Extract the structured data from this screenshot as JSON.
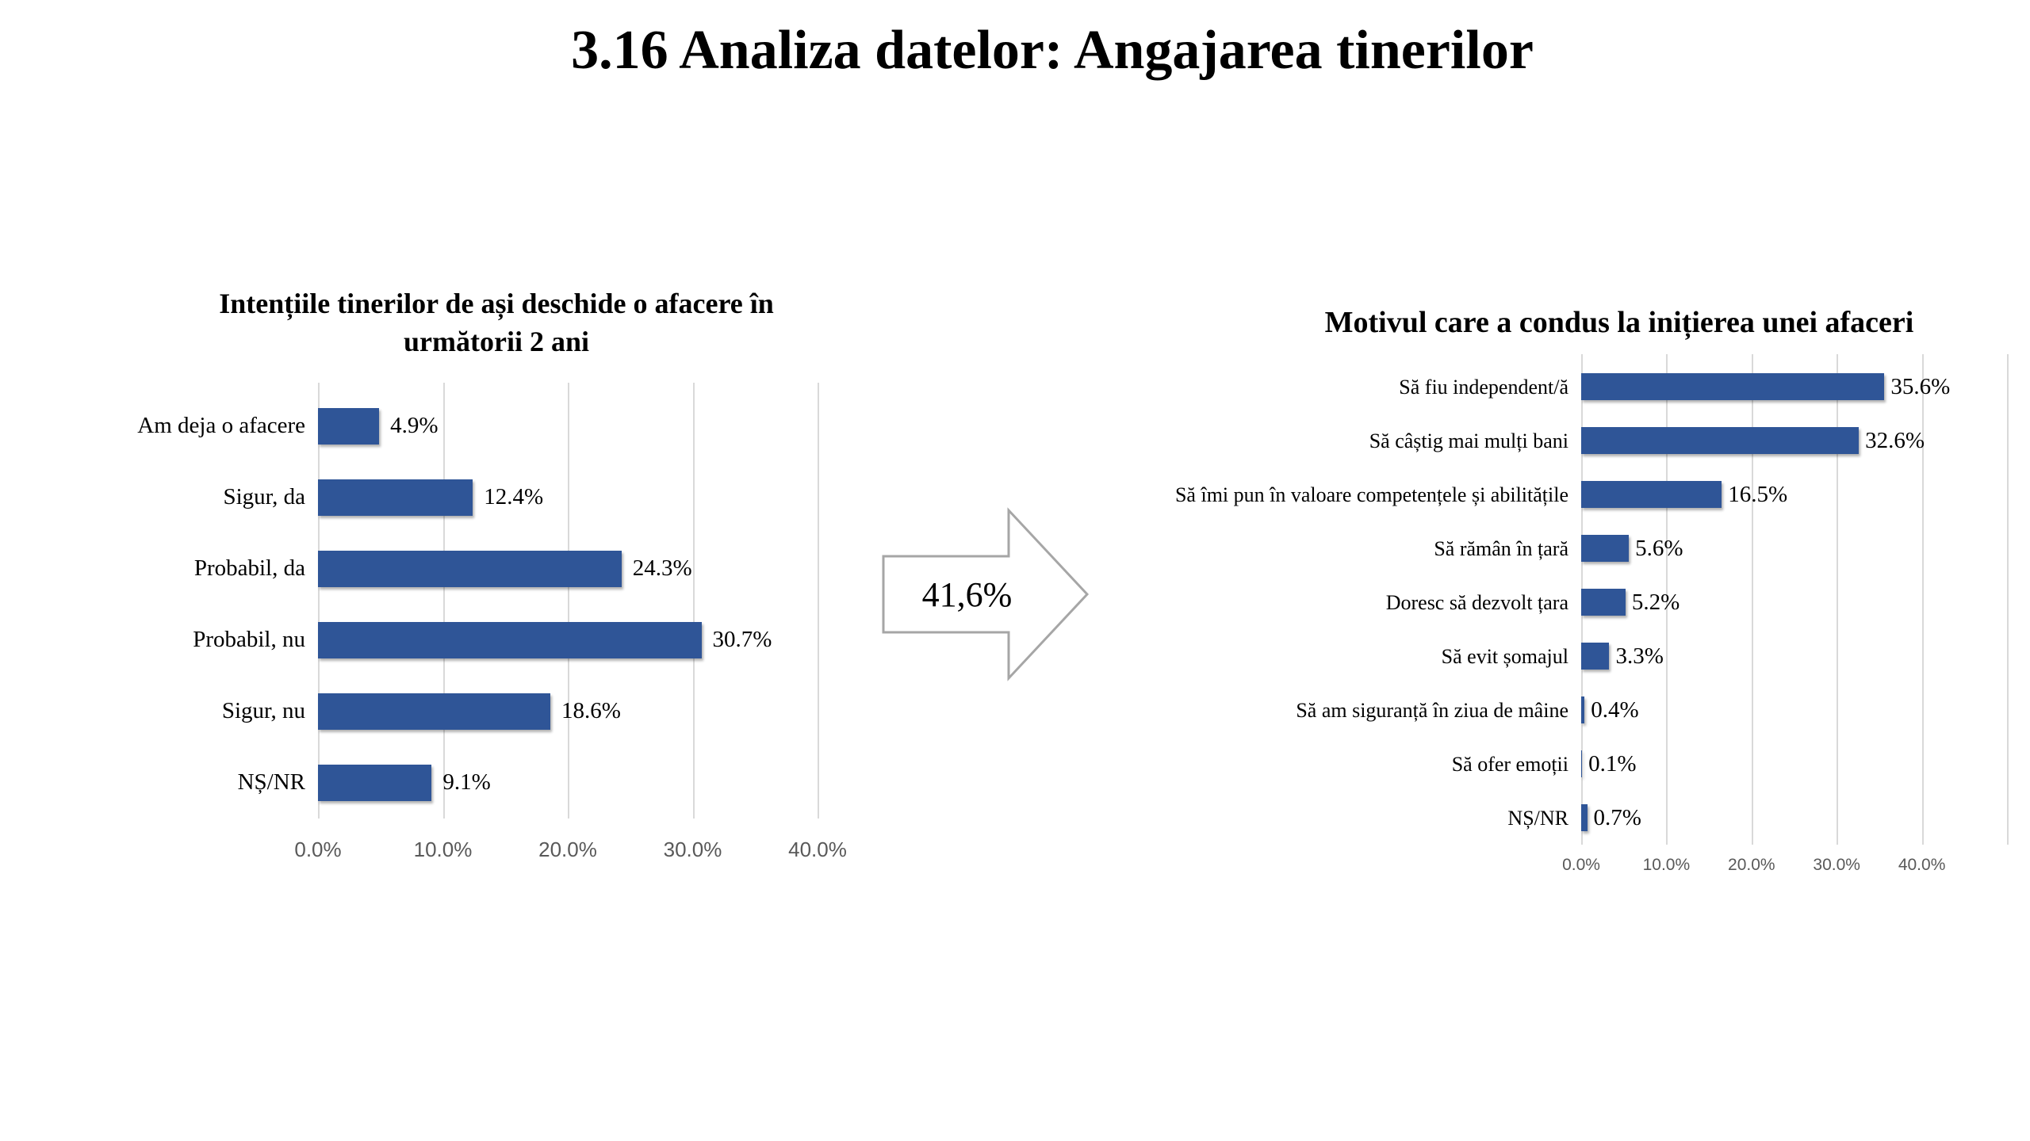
{
  "page_title": "3.16 Analiza datelor: Angajarea tinerilor",
  "arrow": {
    "label": "41,6%"
  },
  "colors": {
    "bar": "#2F5597",
    "gridline": "#D9D9D9",
    "tick_label": "#595959",
    "arrow_outline": "#A6A6A6",
    "background": "#FFFFFF",
    "text": "#000000"
  },
  "chart_data": [
    {
      "type": "bar",
      "orientation": "horizontal",
      "title": "Intențiile tinerilor de ași deschide o afacere în următorii 2 ani",
      "categories": [
        "Am deja o afacere",
        "Sigur, da",
        "Probabil, da",
        "Probabil, nu",
        "Sigur, nu",
        "NȘ/NR"
      ],
      "values": [
        4.9,
        12.4,
        24.3,
        30.7,
        18.6,
        9.1
      ],
      "value_labels": [
        "4.9%",
        "12.4%",
        "24.3%",
        "30.7%",
        "18.6%",
        "9.1%"
      ],
      "xlim": [
        0,
        40
      ],
      "xticks": [
        "0.0%",
        "10.0%",
        "20.0%",
        "30.0%",
        "40.0%"
      ],
      "xlabel": "",
      "ylabel": "",
      "grid": true,
      "legend": false
    },
    {
      "type": "bar",
      "orientation": "horizontal",
      "title": "Motivul care a condus la inițierea unei afaceri",
      "categories": [
        "Să fiu independent/ă",
        "Să câștig mai mulți bani",
        "Să îmi pun în valoare competențele și abilitățile",
        "Să rămân în țară",
        "Doresc să dezvolt țara",
        "Să evit șomajul",
        "Să am siguranță în ziua de mâine",
        "Să ofer emoții",
        "NȘ/NR"
      ],
      "values": [
        35.6,
        32.6,
        16.5,
        5.6,
        5.2,
        3.3,
        0.4,
        0.1,
        0.7
      ],
      "value_labels": [
        "35.6%",
        "32.6%",
        "16.5%",
        "5.6%",
        "5.2%",
        "3.3%",
        "0.4%",
        "0.1%",
        "0.7%"
      ],
      "xlim": [
        0,
        50
      ],
      "xticks": [
        "0.0%",
        "10.0%",
        "20.0%",
        "30.0%",
        "40.0%"
      ],
      "xlabel": "",
      "ylabel": "",
      "grid": true,
      "legend": false
    }
  ]
}
